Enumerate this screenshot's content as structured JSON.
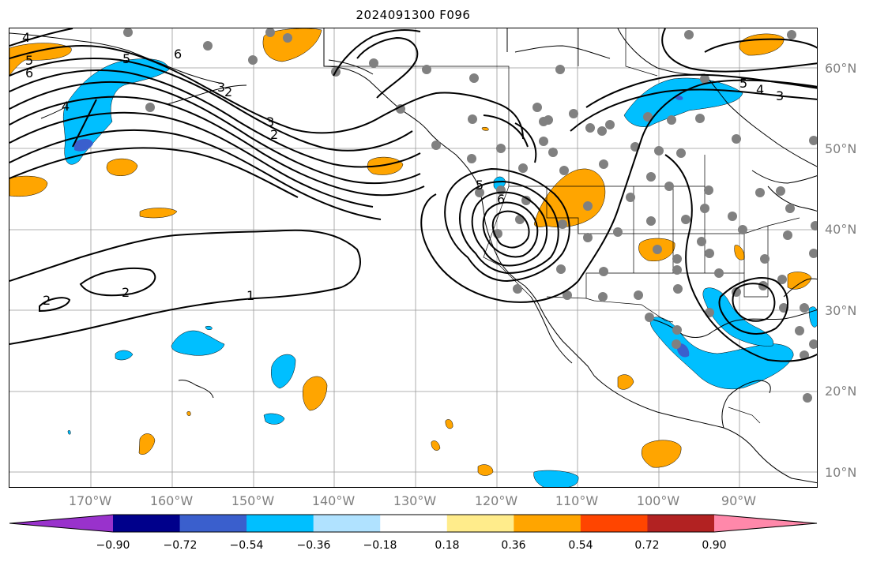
{
  "title": "2024091300 F096",
  "lat_labels": [
    "60°N",
    "50°N",
    "40°N",
    "30°N",
    "20°N",
    "10°N"
  ],
  "lon_labels": [
    "170°W",
    "160°W",
    "150°W",
    "140°W",
    "130°W",
    "120°W",
    "110°W",
    "100°W",
    "90°W"
  ],
  "contour_labels": [
    "4",
    "5",
    "6",
    "6",
    "5",
    "4",
    "3",
    "2",
    "3",
    "2",
    "1",
    "2",
    "2",
    "5",
    "6",
    "5",
    "4",
    "3"
  ],
  "colorbar": {
    "ticks": [
      "−0.90",
      "−0.72",
      "−0.54",
      "−0.36",
      "−0.18",
      "0.18",
      "0.36",
      "0.54",
      "0.72",
      "0.90"
    ],
    "colors": [
      "#9932cc",
      "#00008b",
      "#3a5fcd",
      "#00bfff",
      "#b0e2ff",
      "#ffffff",
      "#ffec8b",
      "#ffa500",
      "#ff4500",
      "#b22222",
      "#ff88aa"
    ]
  },
  "legend_colors": {
    "gray_dots": "#808080",
    "contours": "#000000",
    "grid": "#999999"
  }
}
